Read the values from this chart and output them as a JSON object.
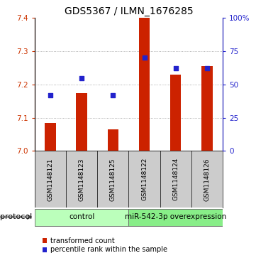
{
  "title": "GDS5367 / ILMN_1676285",
  "samples": [
    "GSM1148121",
    "GSM1148123",
    "GSM1148125",
    "GSM1148122",
    "GSM1148124",
    "GSM1148126"
  ],
  "transformed_counts": [
    7.085,
    7.175,
    7.065,
    7.4,
    7.23,
    7.255
  ],
  "percentile_ranks": [
    42,
    55,
    42,
    70,
    62,
    62
  ],
  "ylim_left": [
    7.0,
    7.4
  ],
  "ylim_right": [
    0,
    100
  ],
  "yticks_left": [
    7.0,
    7.1,
    7.2,
    7.3,
    7.4
  ],
  "yticks_right": [
    0,
    25,
    50,
    75,
    100
  ],
  "bar_color": "#cc2200",
  "dot_color": "#2222cc",
  "bar_width": 0.35,
  "groups": [
    {
      "label": "control",
      "indices": [
        0,
        1,
        2
      ],
      "color": "#bbffbb"
    },
    {
      "label": "miR-542-3p overexpression",
      "indices": [
        3,
        4,
        5
      ],
      "color": "#88ee88"
    }
  ],
  "protocol_label": "protocol",
  "legend_bar_label": "transformed count",
  "legend_dot_label": "percentile rank within the sample",
  "title_fontsize": 10,
  "tick_fontsize": 7.5,
  "sample_label_fontsize": 6.5,
  "group_label_fontsize": 7.5,
  "background_color": "#ffffff",
  "plot_bg_color": "#ffffff",
  "grid_color": "#999999",
  "label_bg_color": "#cccccc"
}
